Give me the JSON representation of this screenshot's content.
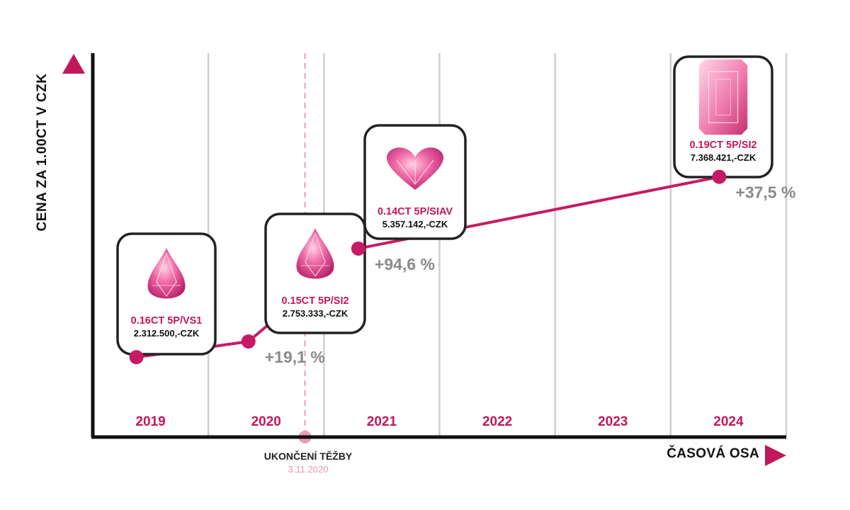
{
  "chart_data": {
    "type": "line",
    "ylabel": "CENA ZA 1.00CT V CZK",
    "xlabel": "ČASOVÁ OSA",
    "categories": [
      "2019",
      "2020",
      "2021",
      "2022",
      "2023",
      "2024"
    ],
    "grid": true,
    "points": [
      {
        "year": "2019",
        "diamond": "0.16CT 5P/VS1",
        "price_label": "2.312.500,-CZK",
        "price": 2312500,
        "shape": "pear",
        "change": ""
      },
      {
        "year": "2020",
        "diamond": "0.15CT 5P/SI2",
        "price_label": "2.753.333,-CZK",
        "price": 2753333,
        "shape": "pear",
        "change": "+19,1 %"
      },
      {
        "year": "2021",
        "diamond": "0.14CT 5P/SIAV",
        "price_label": "5.357.142,-CZK",
        "price": 5357142,
        "shape": "heart",
        "change": "+94,6 %"
      },
      {
        "year": "2024",
        "diamond": "0.19CT 5P/SI2",
        "price_label": "7.368.421,-CZK",
        "price": 7368421,
        "shape": "emerald",
        "change": "+37,5 %"
      }
    ],
    "event": {
      "title": "UKONČENÍ TĚŽBY",
      "date": "3.11.2020"
    }
  },
  "colors": {
    "accent": "#c2185b",
    "line": "#c71a64",
    "grid": "#cfcfcf",
    "axis": "#111111",
    "change_text": "#8a8a8a",
    "event_line": "#ee9bb8",
    "event_date": "#e79ab4"
  }
}
